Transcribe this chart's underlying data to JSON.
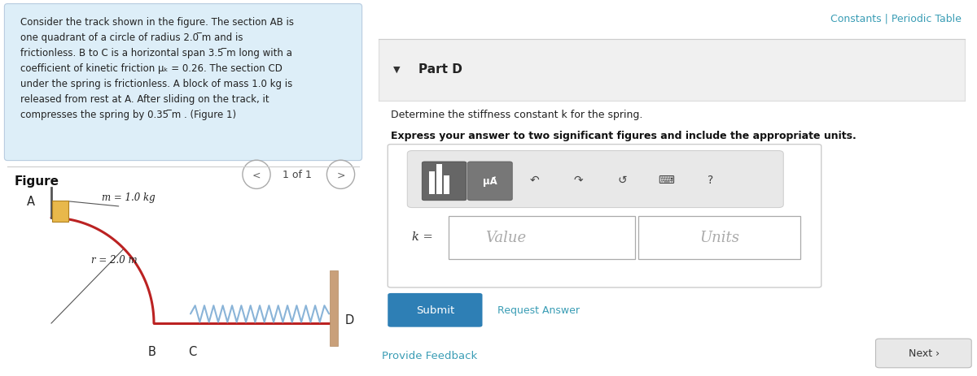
{
  "bg_color": "#ffffff",
  "left_panel_bg": "#ddeeff",
  "constants_text": "Constants | Periodic Table",
  "teal_color": "#3a9db5",
  "part_label": "Part D",
  "question_line1": "Determine the stiffness constant k for the spring.",
  "question_line2": "Express your answer to two significant figures and include the appropriate units.",
  "k_label": "k =",
  "value_placeholder": "Value",
  "units_placeholder": "Units",
  "submit_text": "Submit",
  "submit_bg": "#2e7fb5",
  "request_answer_text": "Request Answer",
  "provide_feedback_text": "Provide Feedback",
  "next_text": "Next ›",
  "figure_label": "Figure",
  "nav_text": "1 of 1",
  "m_label": "m = 1.0 kg",
  "r_label": "r = 2.0 m",
  "A_label": "A",
  "B_label": "B",
  "C_label": "C",
  "D_label": "D",
  "track_color": "#bb2222",
  "block_color": "#e8b84b",
  "wall_color": "#c9a07a",
  "spring_color": "#8ab4d8"
}
